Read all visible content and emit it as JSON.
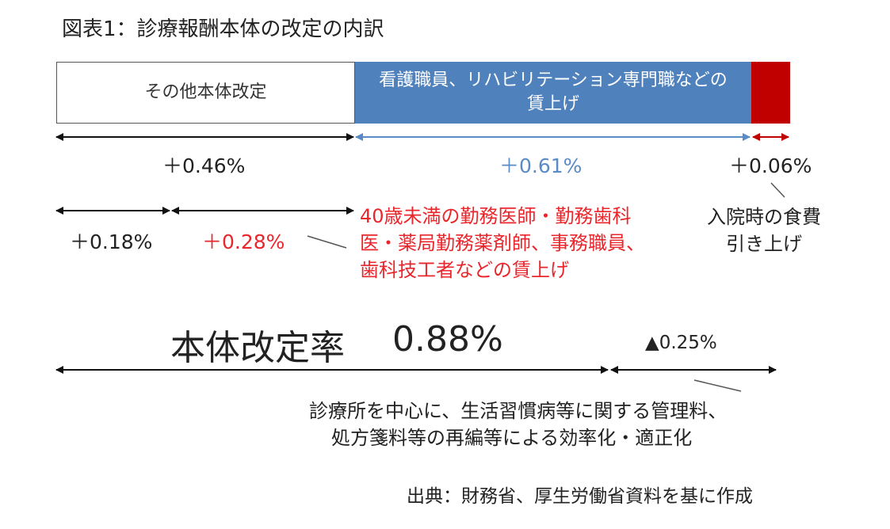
{
  "title": "図表1：診療報酬本体の改定の内訳",
  "bar": {
    "other_label": "その他本体改定",
    "nurse_label": "看護職員、リハビリテーション専門職などの賃上げ"
  },
  "pcts": {
    "other": "＋0.46%",
    "nurse": "＋0.61%",
    "meal": "＋0.06%",
    "sub1": "＋0.18%",
    "sub2": "＋0.28%",
    "reduction": "▲0.25%"
  },
  "notes": {
    "meal_line1": "入院時の食費",
    "meal_line2": "引き上げ",
    "young_line1": "40歳未満の勤務医師・勤務歯科",
    "young_line2": "医・薬局勤務薬剤師、事務職員、",
    "young_line3": "歯科技工者などの賃上げ",
    "reduction_line1": "診療所を中心に、生活習慣病等に関する管理料、",
    "reduction_line2": "処方箋料等の再編等による効率化・適正化"
  },
  "total": {
    "label": "本体改定率",
    "value": "0.88%"
  },
  "source": "出典：財務省、厚生労働省資料を基に作成",
  "colors": {
    "nurse": "#4f81bd",
    "meal": "#c00000",
    "red_text": "#e8262b",
    "blue_text": "#5b8bc6"
  }
}
